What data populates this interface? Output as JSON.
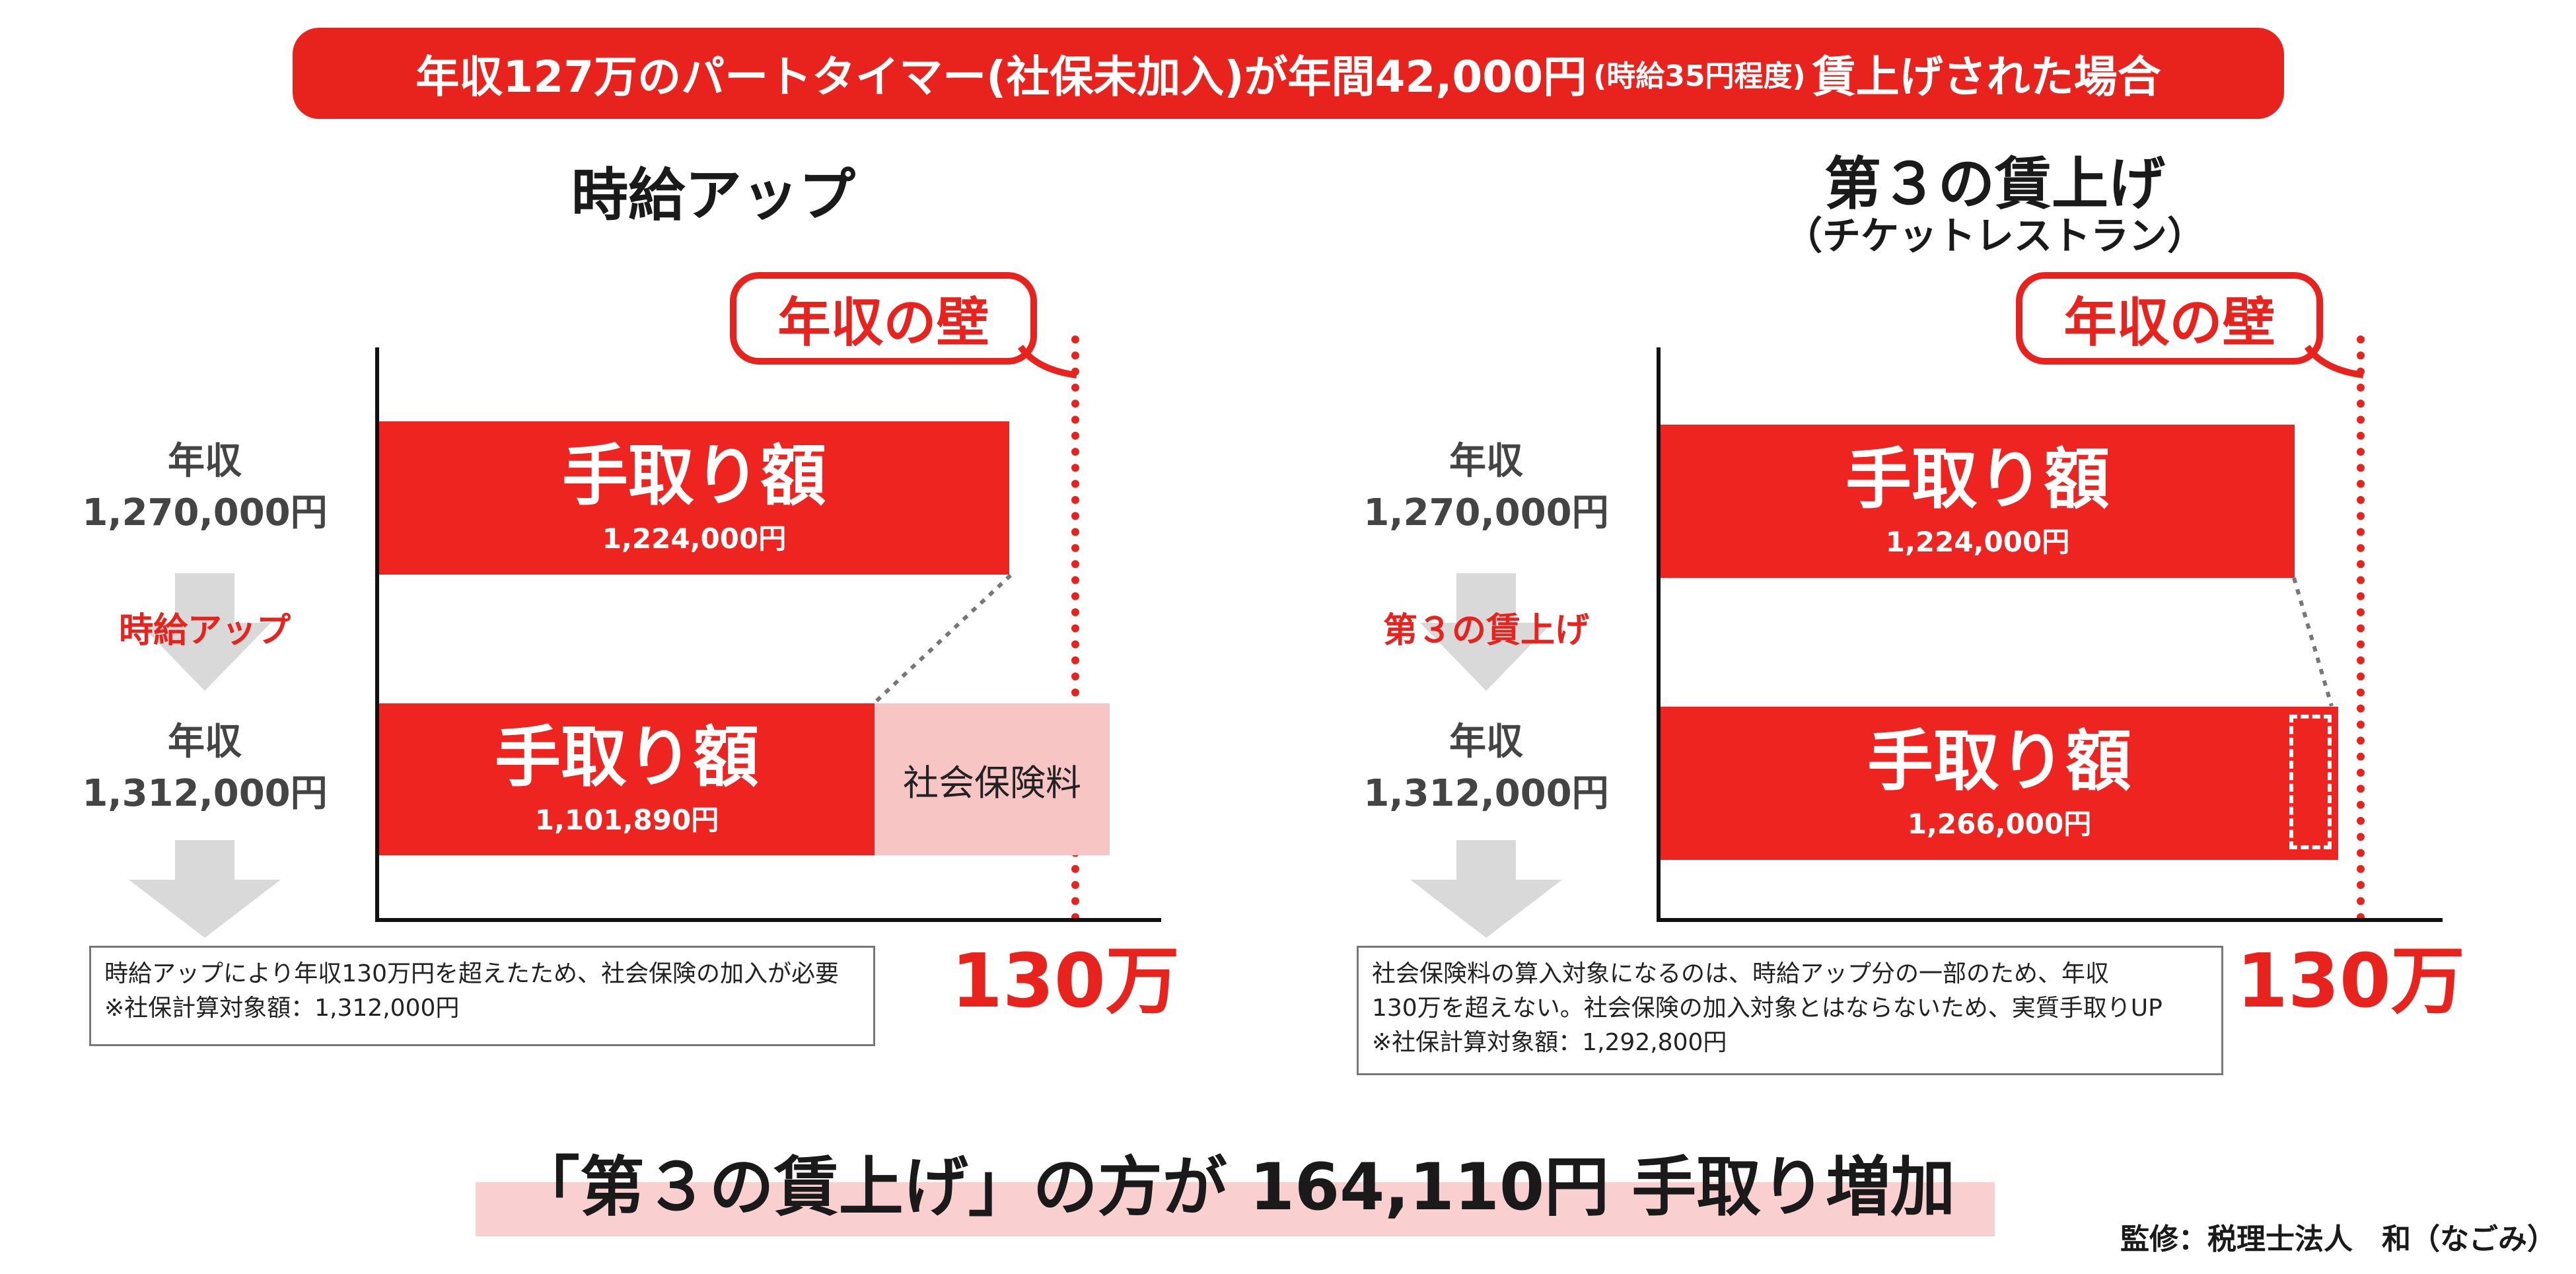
{
  "banner": {
    "main": "年収127万のパートタイマー(社保未加入)が年間42,000円",
    "small": "(時給35円程度)",
    "tail": "賃上げされた場合"
  },
  "left": {
    "title": "時給アップ",
    "wall_label": "年収の壁",
    "before_income_label": "年収",
    "before_income_value": "1,270,000円",
    "arrow_label": "時給アップ",
    "after_income_label": "年収",
    "after_income_value": "1,312,000円",
    "bar_top_title": "手取り額",
    "bar_top_value": "1,224,000円",
    "bar_bottom_title": "手取り額",
    "bar_bottom_value": "1,101,890円",
    "insurance_label": "社会保険料",
    "threshold_label": "130万",
    "note_line1": "時給アップにより年収130万円を超えたため、社会保険の加入が必要",
    "note_line2": "※社保計算対象額：1,312,000円"
  },
  "right": {
    "title": "第３の賃上げ",
    "subtitle": "（チケットレストラン）",
    "wall_label": "年収の壁",
    "before_income_label": "年収",
    "before_income_value": "1,270,000円",
    "arrow_label": "第３の賃上げ",
    "after_income_label": "年収",
    "after_income_value": "1,312,000円",
    "bar_top_title": "手取り額",
    "bar_top_value": "1,224,000円",
    "bar_bottom_title": "手取り額",
    "bar_bottom_value": "1,266,000円",
    "threshold_label": "130万",
    "note_line1": "社会保険料の算入対象になるのは、時給アップ分の一部のため、年収",
    "note_line2": "130万を超えない。社会保険の加入対象とはならないため、実質手取りUP",
    "note_line3": "※社保計算対象額：1,292,800円"
  },
  "conclusion": "「第３の賃上げ」の方が 164,110円 手取り増加",
  "credit": "監修：税理士法人　和（なごみ）",
  "colors": {
    "accent": "#e8231e",
    "insurance": "#f7c5c3",
    "highlight": "#f9d0cf"
  }
}
